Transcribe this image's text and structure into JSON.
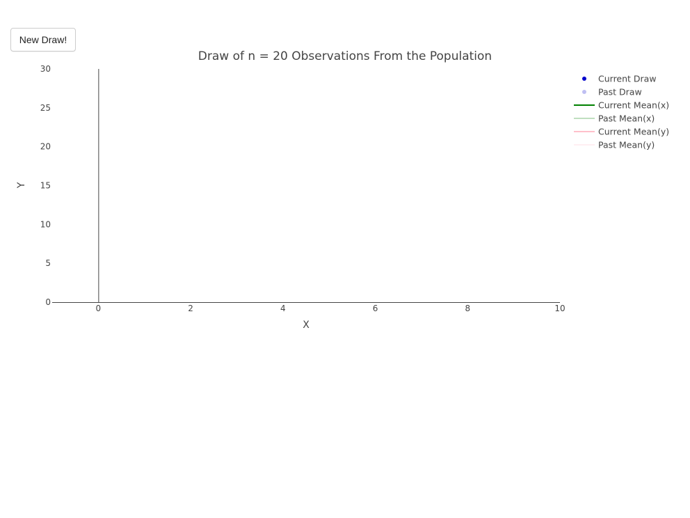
{
  "controls": {
    "new_draw_label": "New Draw!"
  },
  "chart_data": {
    "type": "scatter",
    "title": "Draw of n = 20 Observations From the Population",
    "xlabel": "X",
    "ylabel": "Y",
    "xlim": [
      -1,
      10
    ],
    "ylim": [
      0,
      30
    ],
    "x_ticks": [
      0,
      2,
      4,
      6,
      8,
      10
    ],
    "y_ticks": [
      0,
      5,
      10,
      15,
      20,
      25,
      30
    ],
    "grid": false,
    "legend_position": "top-right",
    "series": [
      {
        "name": "Current Draw",
        "kind": "marker",
        "color": "#0000cc",
        "opacity": 1,
        "points": []
      },
      {
        "name": "Past Draw",
        "kind": "marker",
        "color": "#0000cc",
        "opacity": 0.25,
        "points": []
      },
      {
        "name": "Current Mean(x)",
        "kind": "line",
        "color": "#008000",
        "opacity": 1,
        "points": []
      },
      {
        "name": "Past Mean(x)",
        "kind": "line",
        "color": "#008000",
        "opacity": 0.25,
        "points": []
      },
      {
        "name": "Current Mean(y)",
        "kind": "line",
        "color": "#ffc0cb",
        "opacity": 1,
        "points": []
      },
      {
        "name": "Past Mean(y)",
        "kind": "line",
        "color": "#ffc0cb",
        "opacity": 0.25,
        "points": []
      }
    ]
  }
}
